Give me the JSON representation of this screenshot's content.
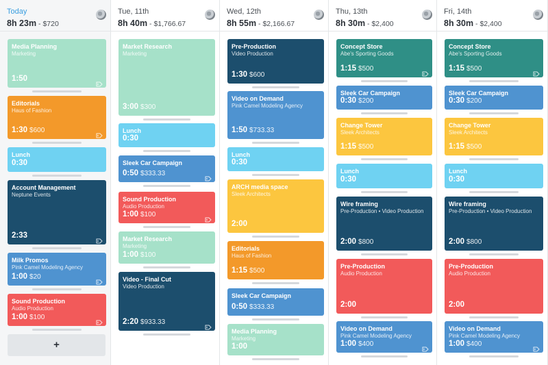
{
  "add_button_label": "+",
  "colors": {
    "mint": "#a6e1c9",
    "orange": "#f3992a",
    "cyan": "#6fd2f2",
    "navy": "#1c4e6d",
    "blue": "#4f93d0",
    "red": "#f25a5a",
    "yellow": "#fcc63f",
    "teal": "#2f8f86",
    "today_accent": "#3a9ee0"
  },
  "days": [
    {
      "label": "Today",
      "hours": "8h 23m",
      "money": "$720",
      "cards": [
        {
          "title": "Media Planning",
          "sub": "Marketing",
          "duration": "1:50",
          "amount": "",
          "color": "mint",
          "tag": true
        },
        {
          "title": "Editorials",
          "sub": "Haus of Fashion",
          "duration": "1:30",
          "amount": "$600",
          "color": "orange",
          "tag": true
        },
        {
          "title": "Lunch",
          "sub": "",
          "duration": "0:30",
          "amount": "",
          "color": "cyan",
          "tag": false
        },
        {
          "title": "Account Management",
          "sub": "Neptune Events",
          "duration": "2:33",
          "amount": "",
          "color": "navy",
          "tag": true
        },
        {
          "title": "Milk Promos",
          "sub": "Pink Camel Modeling Agency",
          "duration": "1:00",
          "amount": "$20",
          "color": "blue",
          "tag": true
        },
        {
          "title": "Sound Production",
          "sub": "Audio Production",
          "duration": "1:00",
          "amount": "$100",
          "color": "red",
          "tag": true
        }
      ]
    },
    {
      "label": "Tue, 11th",
      "hours": "8h 40m",
      "money": "$1,766.67",
      "cards": [
        {
          "title": "Market Research",
          "sub": "Marketing",
          "duration": "3:00",
          "amount": "$300",
          "color": "mint",
          "tag": false
        },
        {
          "title": "Lunch",
          "sub": "",
          "duration": "0:30",
          "amount": "",
          "color": "cyan",
          "tag": false
        },
        {
          "title": "Sleek Car Campaign",
          "sub": "",
          "duration": "0:50",
          "amount": "$333.33",
          "color": "blue",
          "tag": true
        },
        {
          "title": "Sound Production",
          "sub": "Audio Production",
          "duration": "1:00",
          "amount": "$100",
          "color": "red",
          "tag": true
        },
        {
          "title": "Market Research",
          "sub": "Marketing",
          "duration": "1:00",
          "amount": "$100",
          "color": "mint",
          "tag": false
        },
        {
          "title": "Video - Final Cut",
          "sub": "Video Production",
          "duration": "2:20",
          "amount": "$933.33",
          "color": "navy",
          "tag": true
        }
      ]
    },
    {
      "label": "Wed, 12th",
      "hours": "8h 55m",
      "money": "$2,166.67",
      "cards": [
        {
          "title": "Pre-Production",
          "sub": "Video Production",
          "duration": "1:30",
          "amount": "$600",
          "color": "navy",
          "tag": false
        },
        {
          "title": "Video on Demand",
          "sub": "Pink Camel Modeling Agency",
          "duration": "1:50",
          "amount": "$733.33",
          "color": "blue",
          "tag": false
        },
        {
          "title": "Lunch",
          "sub": "",
          "duration": "0:30",
          "amount": "",
          "color": "cyan",
          "tag": false
        },
        {
          "title": "ARCH media space",
          "sub": "Sleek Architects",
          "duration": "2:00",
          "amount": "",
          "color": "yellow",
          "tag": false
        },
        {
          "title": "Editorials",
          "sub": "Haus of Fashion",
          "duration": "1:15",
          "amount": "$500",
          "color": "orange",
          "tag": false
        },
        {
          "title": "Sleek Car Campaign",
          "sub": "",
          "duration": "0:50",
          "amount": "$333.33",
          "color": "blue",
          "tag": false
        },
        {
          "title": "Media Planning",
          "sub": "Marketing",
          "duration": "1:00",
          "amount": "",
          "color": "mint",
          "tag": false
        }
      ]
    },
    {
      "label": "Thu, 13th",
      "hours": "8h 30m",
      "money": "$2,400",
      "cards": [
        {
          "title": "Concept Store",
          "sub": "Abe's Sporting Goods",
          "duration": "1:15",
          "amount": "$500",
          "color": "teal",
          "tag": true
        },
        {
          "title": "Sleek Car Campaign",
          "sub": "",
          "duration": "0:30",
          "amount": "$200",
          "color": "blue",
          "tag": false
        },
        {
          "title": "Change Tower",
          "sub": "Sleek Architects",
          "duration": "1:15",
          "amount": "$500",
          "color": "yellow",
          "tag": false
        },
        {
          "title": "Lunch",
          "sub": "",
          "duration": "0:30",
          "amount": "",
          "color": "cyan",
          "tag": false
        },
        {
          "title": "Wire framing",
          "sub": "Pre-Production • Video Production",
          "duration": "2:00",
          "amount": "$800",
          "color": "navy",
          "tag": false
        },
        {
          "title": "Pre-Production",
          "sub": "Audio Production",
          "duration": "2:00",
          "amount": "",
          "color": "red",
          "tag": false
        },
        {
          "title": "Video on Demand",
          "sub": "Pink Camel Modeling Agency",
          "duration": "1:00",
          "amount": "$400",
          "color": "blue",
          "tag": true
        }
      ]
    },
    {
      "label": "Fri, 14th",
      "hours": "8h 30m",
      "money": "$2,400",
      "cards": [
        {
          "title": "Concept Store",
          "sub": "Abe's Sporting Goods",
          "duration": "1:15",
          "amount": "$500",
          "color": "teal",
          "tag": true
        },
        {
          "title": "Sleek Car Campaign",
          "sub": "",
          "duration": "0:30",
          "amount": "$200",
          "color": "blue",
          "tag": false
        },
        {
          "title": "Change Tower",
          "sub": "Sleek Architects",
          "duration": "1:15",
          "amount": "$500",
          "color": "yellow",
          "tag": false
        },
        {
          "title": "Lunch",
          "sub": "",
          "duration": "0:30",
          "amount": "",
          "color": "cyan",
          "tag": false
        },
        {
          "title": "Wire framing",
          "sub": "Pre-Production • Video Production",
          "duration": "2:00",
          "amount": "$800",
          "color": "navy",
          "tag": false
        },
        {
          "title": "Pre-Production",
          "sub": "Audio Production",
          "duration": "2:00",
          "amount": "",
          "color": "red",
          "tag": false
        },
        {
          "title": "Video on Demand",
          "sub": "Pink Camel Modeling Agency",
          "duration": "1:00",
          "amount": "$400",
          "color": "blue",
          "tag": true
        }
      ]
    }
  ]
}
